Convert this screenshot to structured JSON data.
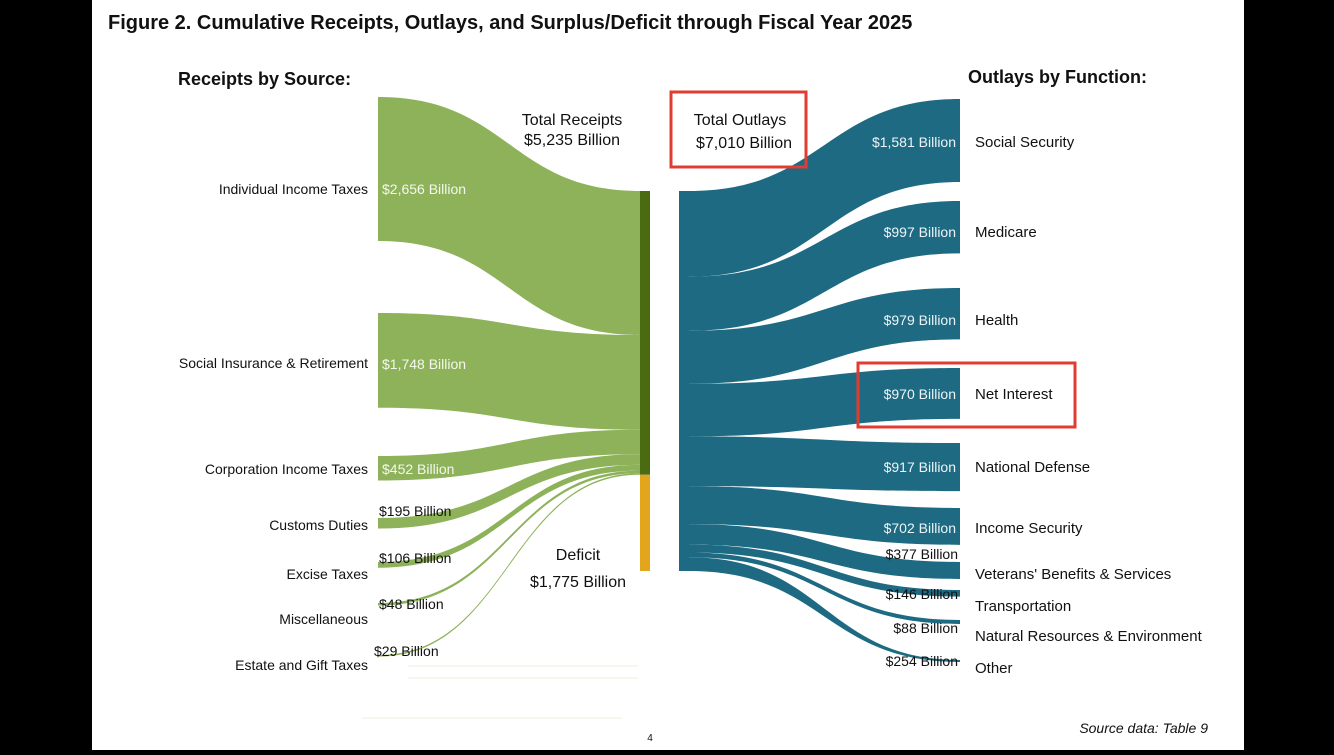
{
  "title": "Figure 2. Cumulative Receipts, Outlays, and Surplus/Deficit through Fiscal Year 2025",
  "source_note": "Source data: Table 9",
  "page_number": "4",
  "colors": {
    "receipts": "#8db25a",
    "receipts_bar": "#4a6b12",
    "deficit": "#e2a51b",
    "outlays": "#1d6a82",
    "highlight": "#e03c31",
    "text": "#111111"
  },
  "chart_data": {
    "type": "sankey",
    "units": "Billion",
    "receipts_header": "Receipts by Source:",
    "outlays_header": "Outlays by Function:",
    "total_receipts": {
      "label_line1": "Total Receipts",
      "label_line2": "$5,235 Billion",
      "value": 5235
    },
    "total_outlays": {
      "label_line1": "Total Outlays",
      "label_line2": "$7,010 Billion",
      "value": 7010
    },
    "deficit": {
      "label_line1": "Deficit",
      "label_line2": "$1,775 Billion",
      "value": 1775
    },
    "receipts": [
      {
        "name": "Individual Income Taxes",
        "value": 2656,
        "value_label": "$2,656 Billion"
      },
      {
        "name": "Social Insurance & Retirement",
        "value": 1748,
        "value_label": "$1,748 Billion"
      },
      {
        "name": "Corporation Income Taxes",
        "value": 452,
        "value_label": "$452 Billion"
      },
      {
        "name": "Customs Duties",
        "value": 195,
        "value_label": "$195 Billion"
      },
      {
        "name": "Excise Taxes",
        "value": 106,
        "value_label": "$106 Billion"
      },
      {
        "name": "Miscellaneous",
        "value": 48,
        "value_label": "$48 Billion"
      },
      {
        "name": "Estate and Gift Taxes",
        "value": 29,
        "value_label": "$29 Billion"
      }
    ],
    "outlays": [
      {
        "name": "Social Security",
        "value": 1581,
        "value_label": "$1,581 Billion"
      },
      {
        "name": "Medicare",
        "value": 997,
        "value_label": "$997 Billion"
      },
      {
        "name": "Health",
        "value": 979,
        "value_label": "$979 Billion"
      },
      {
        "name": "Net Interest",
        "value": 970,
        "value_label": "$970 Billion",
        "highlighted": true
      },
      {
        "name": "National Defense",
        "value": 917,
        "value_label": "$917 Billion"
      },
      {
        "name": "Income Security",
        "value": 702,
        "value_label": "$702 Billion"
      },
      {
        "name": "Veterans' Benefits & Services",
        "value": 377,
        "value_label": "$377 Billion"
      },
      {
        "name": "Transportation",
        "value": 146,
        "value_label": "$146 Billion"
      },
      {
        "name": "Natural Resources & Environment",
        "value": 88,
        "value_label": "$88 Billion"
      },
      {
        "name": "Other",
        "value": 254,
        "value_label": "$254 Billion"
      }
    ]
  }
}
